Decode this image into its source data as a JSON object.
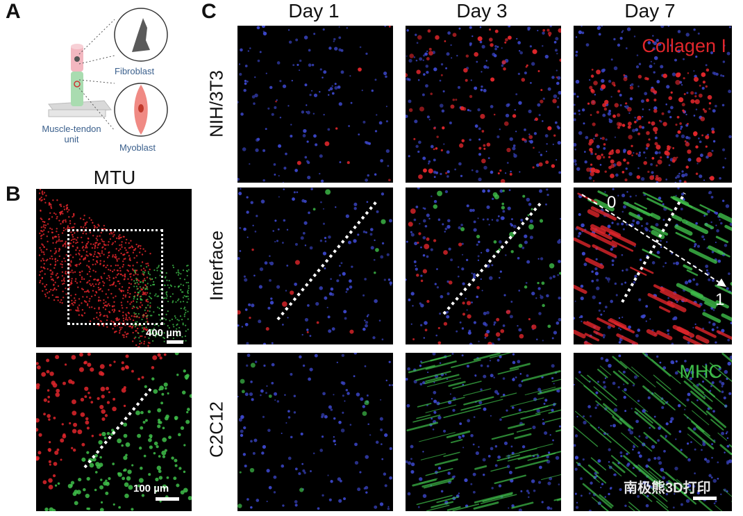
{
  "panels": {
    "a": {
      "letter": "A",
      "fibroblast": "Fibroblast",
      "myoblast": "Myoblast",
      "unit_line1": "Muscle-tendon",
      "unit_line2": "unit"
    },
    "b": {
      "letter": "B",
      "title": "MTU",
      "scale_top": "400 µm",
      "scale_bottom": "100 µm"
    },
    "c": {
      "letter": "C",
      "columns": [
        "Day 1",
        "Day 3",
        "Day 7"
      ],
      "rows": [
        "NIH/3T3",
        "Interface",
        "C2C12"
      ],
      "overlay_collagen": "Collagen I",
      "overlay_mhc": "MHC",
      "interface_start": "0",
      "interface_end": "1"
    }
  },
  "watermark": "南极熊3D打印",
  "colors": {
    "collagen": "#e0262b",
    "mhc": "#3fbf4a",
    "dapi": "#3b46c8",
    "diagram_label": "#3a5f8c"
  }
}
